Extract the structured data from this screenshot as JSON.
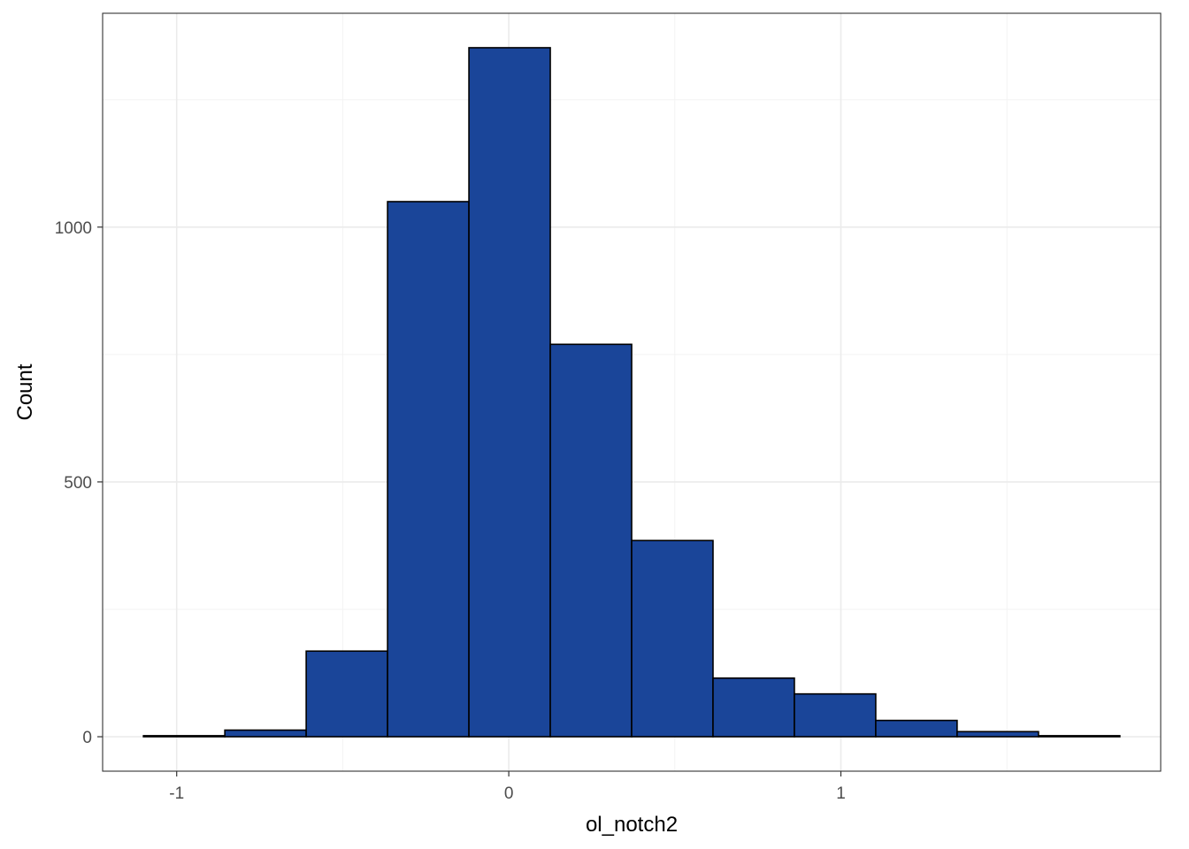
{
  "chart_data": {
    "type": "bar",
    "subtype": "histogram",
    "title": "",
    "xlabel": "ol_notch2",
    "ylabel": "Count",
    "bins": [
      {
        "x_start": -1.1,
        "x_end": -0.855,
        "count": 2
      },
      {
        "x_start": -0.855,
        "x_end": -0.61,
        "count": 13
      },
      {
        "x_start": -0.61,
        "x_end": -0.365,
        "count": 168
      },
      {
        "x_start": -0.365,
        "x_end": -0.12,
        "count": 1050
      },
      {
        "x_start": -0.12,
        "x_end": 0.125,
        "count": 1352
      },
      {
        "x_start": 0.125,
        "x_end": 0.37,
        "count": 770
      },
      {
        "x_start": 0.37,
        "x_end": 0.615,
        "count": 385
      },
      {
        "x_start": 0.615,
        "x_end": 0.86,
        "count": 115
      },
      {
        "x_start": 0.86,
        "x_end": 1.105,
        "count": 84
      },
      {
        "x_start": 1.105,
        "x_end": 1.35,
        "count": 32
      },
      {
        "x_start": 1.35,
        "x_end": 1.595,
        "count": 10
      },
      {
        "x_start": 1.595,
        "x_end": 1.84,
        "count": 2
      }
    ],
    "xlim": [
      -1.223,
      1.963
    ],
    "ylim": [
      -67.6,
      1419.6
    ],
    "x_ticks": [
      -1,
      0,
      1
    ],
    "x_tick_labels": [
      "-1",
      "0",
      "1"
    ],
    "y_ticks": [
      0,
      500,
      1000
    ],
    "y_tick_labels": [
      "0",
      "500",
      "1000"
    ],
    "x_minor_breaks": [
      -0.5,
      0.5,
      1.5
    ],
    "y_minor_breaks": [
      250,
      750,
      1250
    ],
    "grid": true,
    "legend": "none",
    "colors": {
      "bar_fill": "#1a4599",
      "bar_outline": "#000000",
      "panel_border": "#333333",
      "grid_major": "#ebebeb",
      "grid_minor": "#f3f3f3",
      "tick_text": "#4d4d4d"
    }
  }
}
